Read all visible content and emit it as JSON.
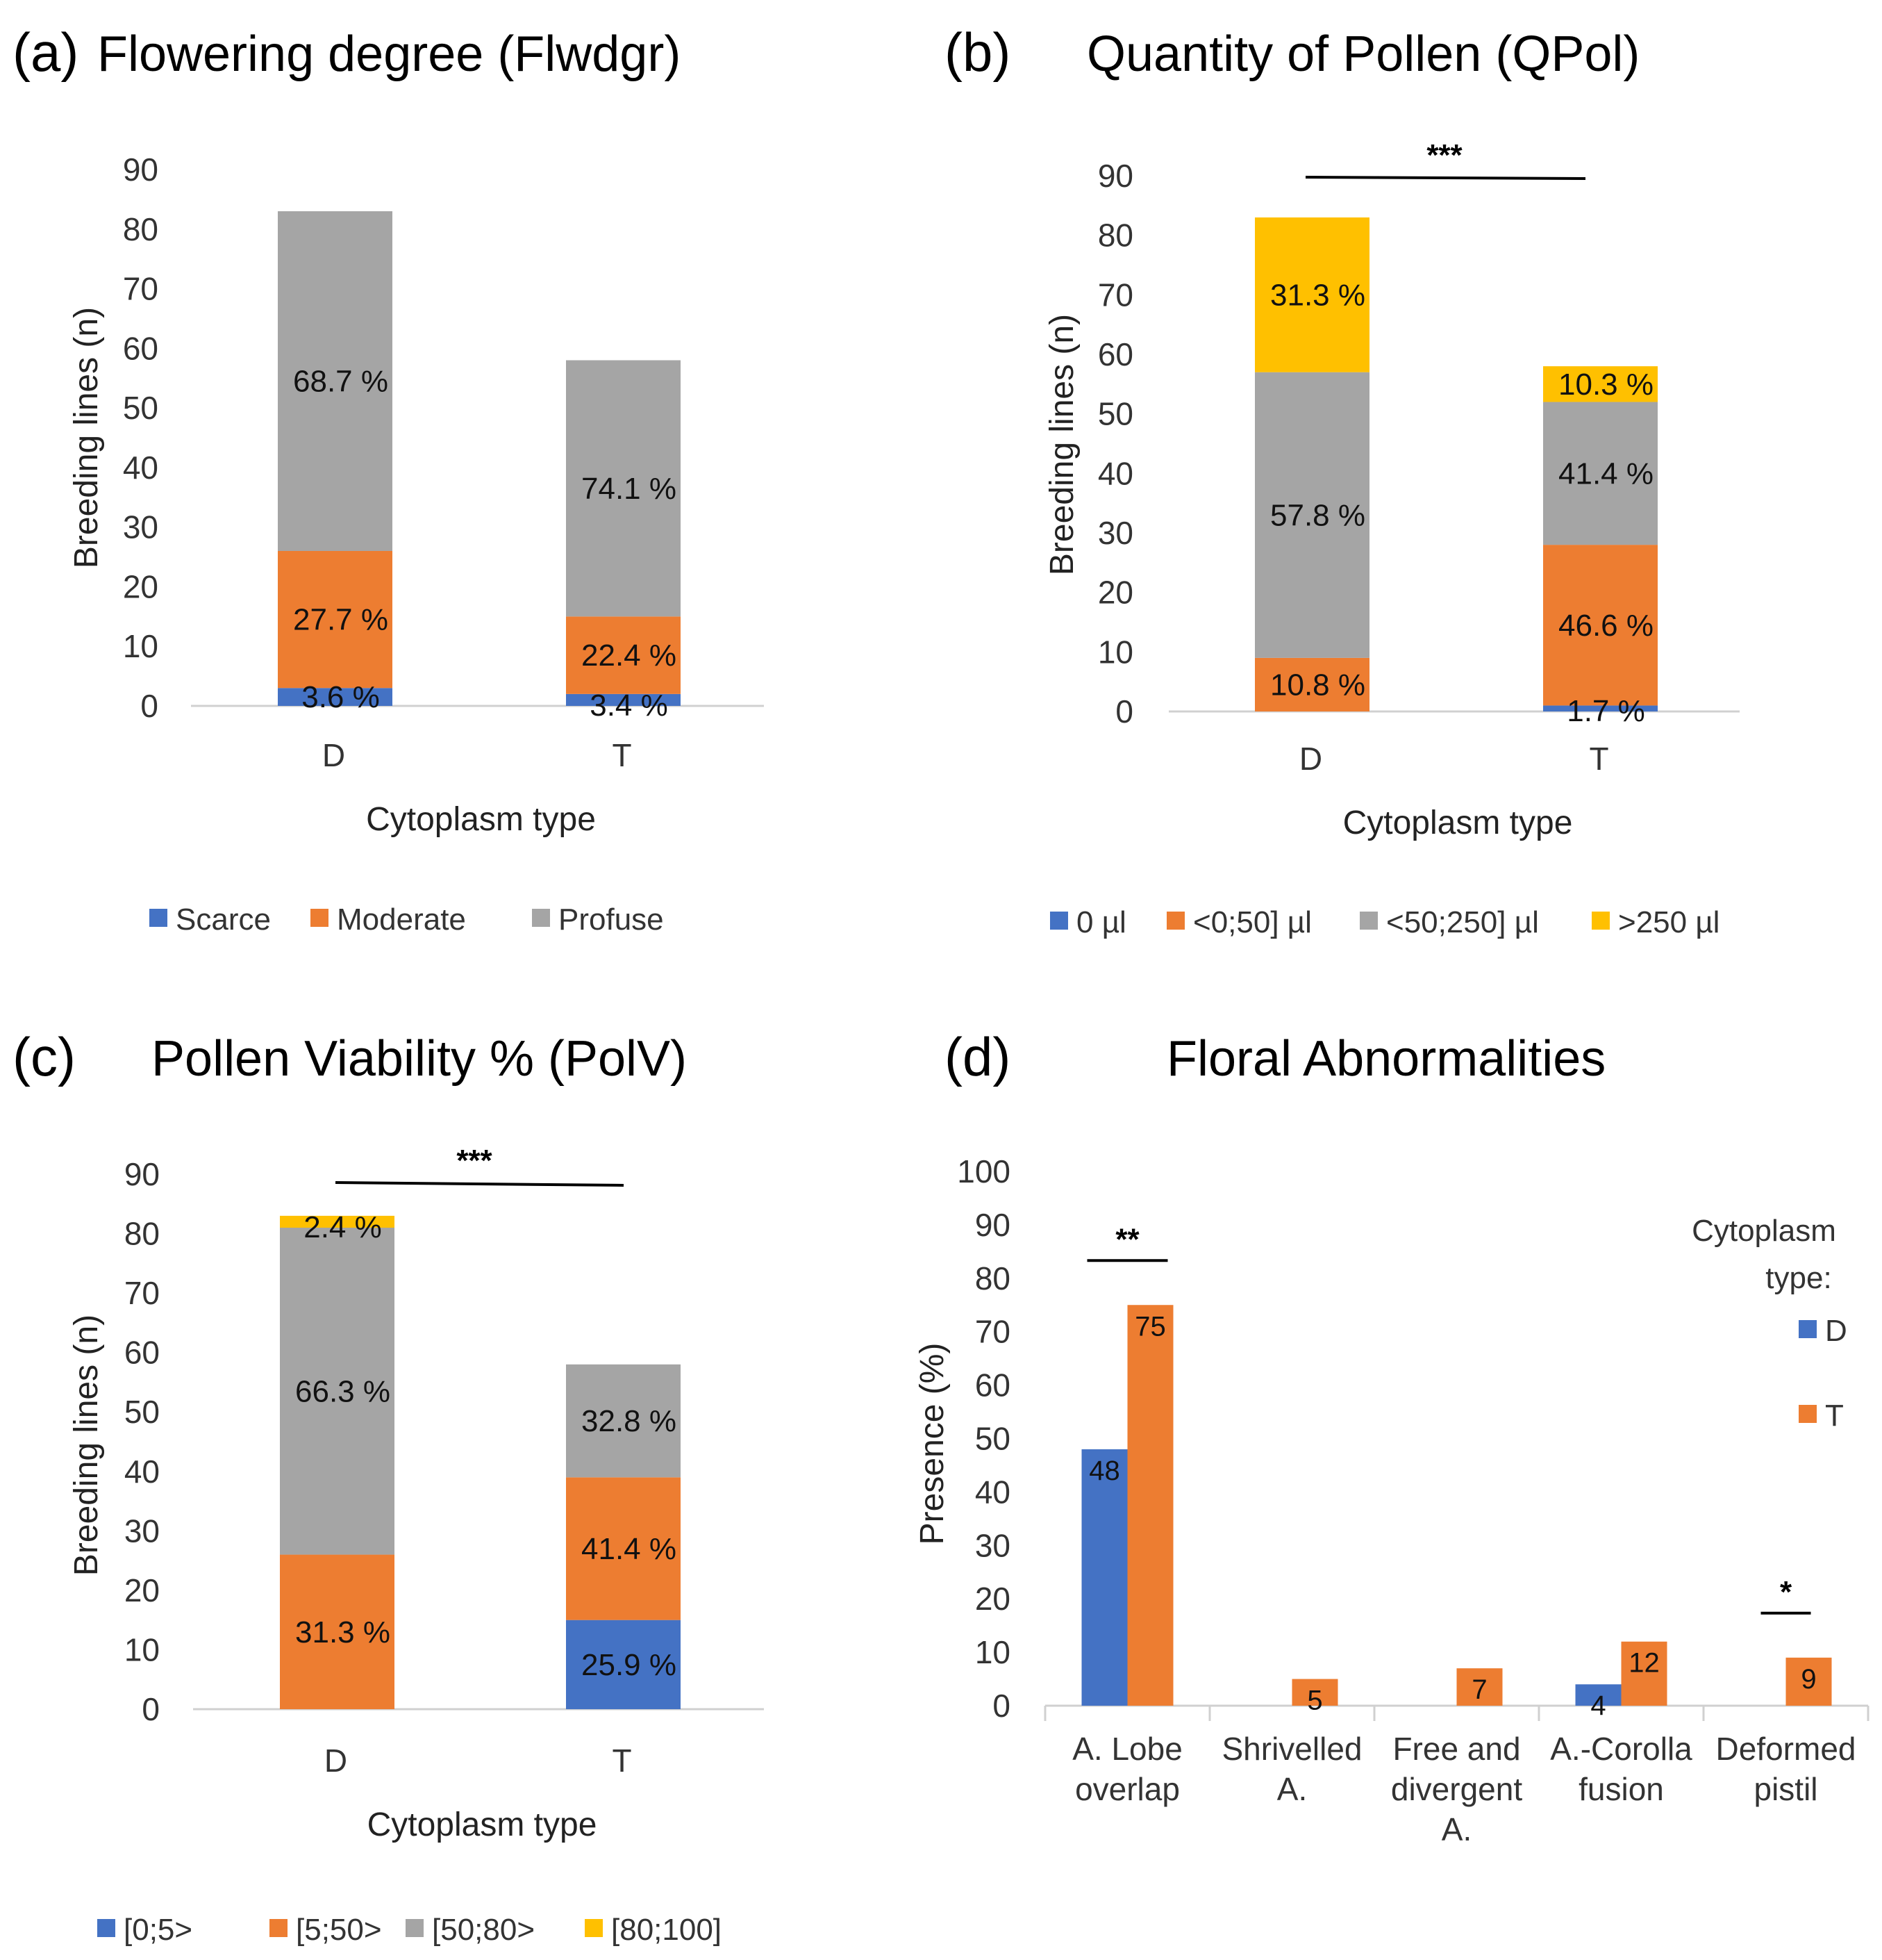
{
  "colors": {
    "blue": "#4472c4",
    "orange": "#ed7d31",
    "gray": "#a5a5a5",
    "yellow": "#ffc000"
  },
  "chart_data": [
    {
      "type": "bar",
      "stacked": true,
      "panel": "(a)",
      "title": "Flowering degree (Flwdgr)",
      "xlabel": "Cytoplasm type",
      "ylabel": "Breeding lines (n)",
      "ylim": [
        0,
        90
      ],
      "yticks": [
        "0",
        "10",
        "20",
        "30",
        "40",
        "50",
        "60",
        "70",
        "80",
        "90"
      ],
      "categories": [
        "D",
        "T"
      ],
      "series": [
        {
          "name": "Scarce",
          "color": "#4472c4",
          "values": [
            3,
            2
          ],
          "labels": [
            "3.6 %",
            "3.4 %"
          ]
        },
        {
          "name": "Moderate",
          "color": "#ed7d31",
          "values": [
            23,
            13
          ],
          "labels": [
            "27.7 %",
            "22.4 %"
          ]
        },
        {
          "name": "Profuse",
          "color": "#a5a5a5",
          "values": [
            57,
            43
          ],
          "labels": [
            "68.7 %",
            "74.1 %"
          ]
        }
      ],
      "significance": null
    },
    {
      "type": "bar",
      "stacked": true,
      "panel": "(b)",
      "title": "Quantity of Pollen (QPol)",
      "xlabel": "Cytoplasm type",
      "ylabel": "Breeding lines (n)",
      "ylim": [
        0,
        90
      ],
      "yticks": [
        "0",
        "10",
        "20",
        "30",
        "40",
        "50",
        "60",
        "70",
        "80",
        "90"
      ],
      "categories": [
        "D",
        "T"
      ],
      "series": [
        {
          "name": "0 µl",
          "color": "#4472c4",
          "values": [
            0,
            1
          ],
          "labels": [
            "",
            "1.7 %"
          ]
        },
        {
          "name": "<0;50] µl",
          "color": "#ed7d31",
          "values": [
            9,
            27
          ],
          "labels": [
            "10.8 %",
            "46.6 %"
          ]
        },
        {
          "name": "<50;250] µl",
          "color": "#a5a5a5",
          "values": [
            48,
            24
          ],
          "labels": [
            "57.8 %",
            "41.4 %"
          ]
        },
        {
          "name": ">250 µl",
          "color": "#ffc000",
          "values": [
            26,
            6
          ],
          "labels": [
            "31.3 %",
            "10.3 %"
          ]
        }
      ],
      "significance": "***"
    },
    {
      "type": "bar",
      "stacked": true,
      "panel": "(c)",
      "title": "Pollen Viability % (PolV)",
      "xlabel": "Cytoplasm type",
      "ylabel": "Breeding lines (n)",
      "ylim": [
        0,
        90
      ],
      "yticks": [
        "0",
        "10",
        "20",
        "30",
        "40",
        "50",
        "60",
        "70",
        "80",
        "90"
      ],
      "categories": [
        "D",
        "T"
      ],
      "series": [
        {
          "name": "[0;5>",
          "color": "#4472c4",
          "values": [
            0,
            15
          ],
          "labels": [
            "",
            "25.9 %"
          ]
        },
        {
          "name": "[5;50>",
          "color": "#ed7d31",
          "values": [
            26,
            24
          ],
          "labels": [
            "31.3 %",
            "41.4 %"
          ]
        },
        {
          "name": "[50;80>",
          "color": "#a5a5a5",
          "values": [
            55,
            19
          ],
          "labels": [
            "66.3 %",
            "32.8 %"
          ]
        },
        {
          "name": "[80;100]",
          "color": "#ffc000",
          "values": [
            2,
            0
          ],
          "labels": [
            "2.4 %",
            ""
          ]
        }
      ],
      "significance": "***"
    },
    {
      "type": "bar",
      "stacked": false,
      "panel": "(d)",
      "title": "Floral Abnormalities",
      "xlabel": "",
      "ylabel": "Presence (%)",
      "ylim": [
        0,
        100
      ],
      "yticks": [
        "0",
        "10",
        "20",
        "30",
        "40",
        "50",
        "60",
        "70",
        "80",
        "90",
        "100"
      ],
      "categories": [
        [
          "A. Lobe",
          "overlap"
        ],
        [
          "Shrivelled",
          "A."
        ],
        [
          "Free and",
          "divergent",
          "A."
        ],
        [
          "A.-Corolla",
          "fusion"
        ],
        [
          "Deformed",
          "pistil"
        ]
      ],
      "legend_title": [
        "Cytoplasm",
        "type:"
      ],
      "series": [
        {
          "name": "D",
          "color": "#4472c4",
          "values": [
            48,
            0,
            0,
            4,
            0
          ],
          "labels": [
            "48",
            "",
            "",
            "4",
            ""
          ]
        },
        {
          "name": "T",
          "color": "#ed7d31",
          "values": [
            75,
            5,
            7,
            12,
            9
          ],
          "labels": [
            "75",
            "5",
            "7",
            "12",
            "9"
          ]
        }
      ],
      "significance": [
        "**",
        "",
        "",
        "",
        "*"
      ]
    }
  ]
}
